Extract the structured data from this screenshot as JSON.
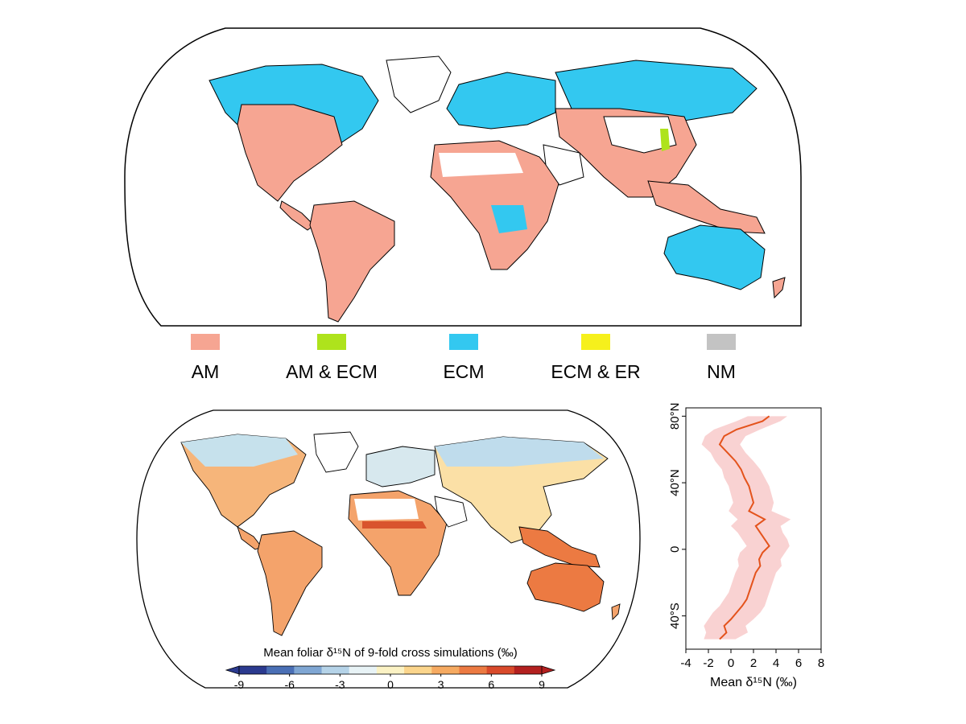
{
  "legend": {
    "items": [
      {
        "label": "AM",
        "color": "#f6a592"
      },
      {
        "label": "AM & ECM",
        "color": "#aee31c"
      },
      {
        "label": "ECM",
        "color": "#33c8f0"
      },
      {
        "label": "ECM & ER",
        "color": "#f6f01c"
      },
      {
        "label": "NM",
        "color": "#c3c3c3"
      }
    ]
  },
  "colorbar": {
    "title": "Mean foliar δ¹⁵N of 9-fold cross simulations (‰)",
    "ticks": [
      "-9",
      "-6",
      "-3",
      "0",
      "3",
      "6",
      "9"
    ],
    "colors": [
      "#2b3a8f",
      "#4a6fb5",
      "#7fa6d3",
      "#b5d3e8",
      "#e8f3f6",
      "#fbf2c4",
      "#fbd58c",
      "#f6aa61",
      "#ec7a42",
      "#d94a2b",
      "#b3201f"
    ]
  },
  "chart_data": {
    "type": "line",
    "xlabel": "Mean δ¹⁵N (‰)",
    "xlim": [
      -4,
      8
    ],
    "ylim": [
      -60,
      85
    ],
    "x_ticks": [
      "-4",
      "-2",
      "0",
      "2",
      "4",
      "6",
      "8"
    ],
    "y_ticks": [
      {
        "value": 80,
        "label": "80°N"
      },
      {
        "value": 40,
        "label": "40°N"
      },
      {
        "value": 0,
        "label": "0"
      },
      {
        "value": -40,
        "label": "40°S"
      }
    ],
    "series": [
      {
        "color": "#e4531c",
        "band_color": "#f7c7c7",
        "latitude": [
          80,
          77,
          72,
          68,
          63,
          58,
          53,
          48,
          43,
          38,
          33,
          28,
          23,
          18,
          14,
          10,
          6,
          2,
          -2,
          -6,
          -10,
          -14,
          -18,
          -22,
          -26,
          -30,
          -34,
          -38,
          -42,
          -46,
          -50,
          -54
        ],
        "mean": [
          3.4,
          2.8,
          0.5,
          -0.6,
          -1.0,
          -0.3,
          0.4,
          0.9,
          1.2,
          1.6,
          1.8,
          2.0,
          1.6,
          3.0,
          2.2,
          2.6,
          3.0,
          3.4,
          2.8,
          2.5,
          2.6,
          2.2,
          2.0,
          1.8,
          1.6,
          1.4,
          1.0,
          0.5,
          0.0,
          -0.6,
          -0.4,
          -1.0
        ],
        "lower": [
          1.5,
          0.5,
          -1.5,
          -2.3,
          -2.6,
          -1.8,
          -1.4,
          -0.8,
          -0.6,
          -0.2,
          0.0,
          0.2,
          -0.2,
          0.6,
          0.0,
          0.6,
          1.0,
          1.4,
          0.8,
          0.6,
          0.7,
          0.4,
          0.2,
          0.0,
          -0.2,
          -0.6,
          -1.0,
          -1.6,
          -2.0,
          -2.4,
          -2.2,
          -2.4
        ],
        "upper": [
          5.0,
          4.4,
          2.6,
          1.3,
          0.8,
          1.3,
          2.0,
          2.6,
          3.0,
          3.4,
          3.6,
          3.8,
          3.6,
          5.3,
          4.4,
          4.6,
          5.0,
          5.2,
          4.8,
          4.4,
          4.5,
          4.0,
          3.8,
          3.6,
          3.4,
          3.2,
          3.0,
          2.6,
          2.0,
          1.3,
          1.5,
          0.4
        ]
      }
    ]
  }
}
